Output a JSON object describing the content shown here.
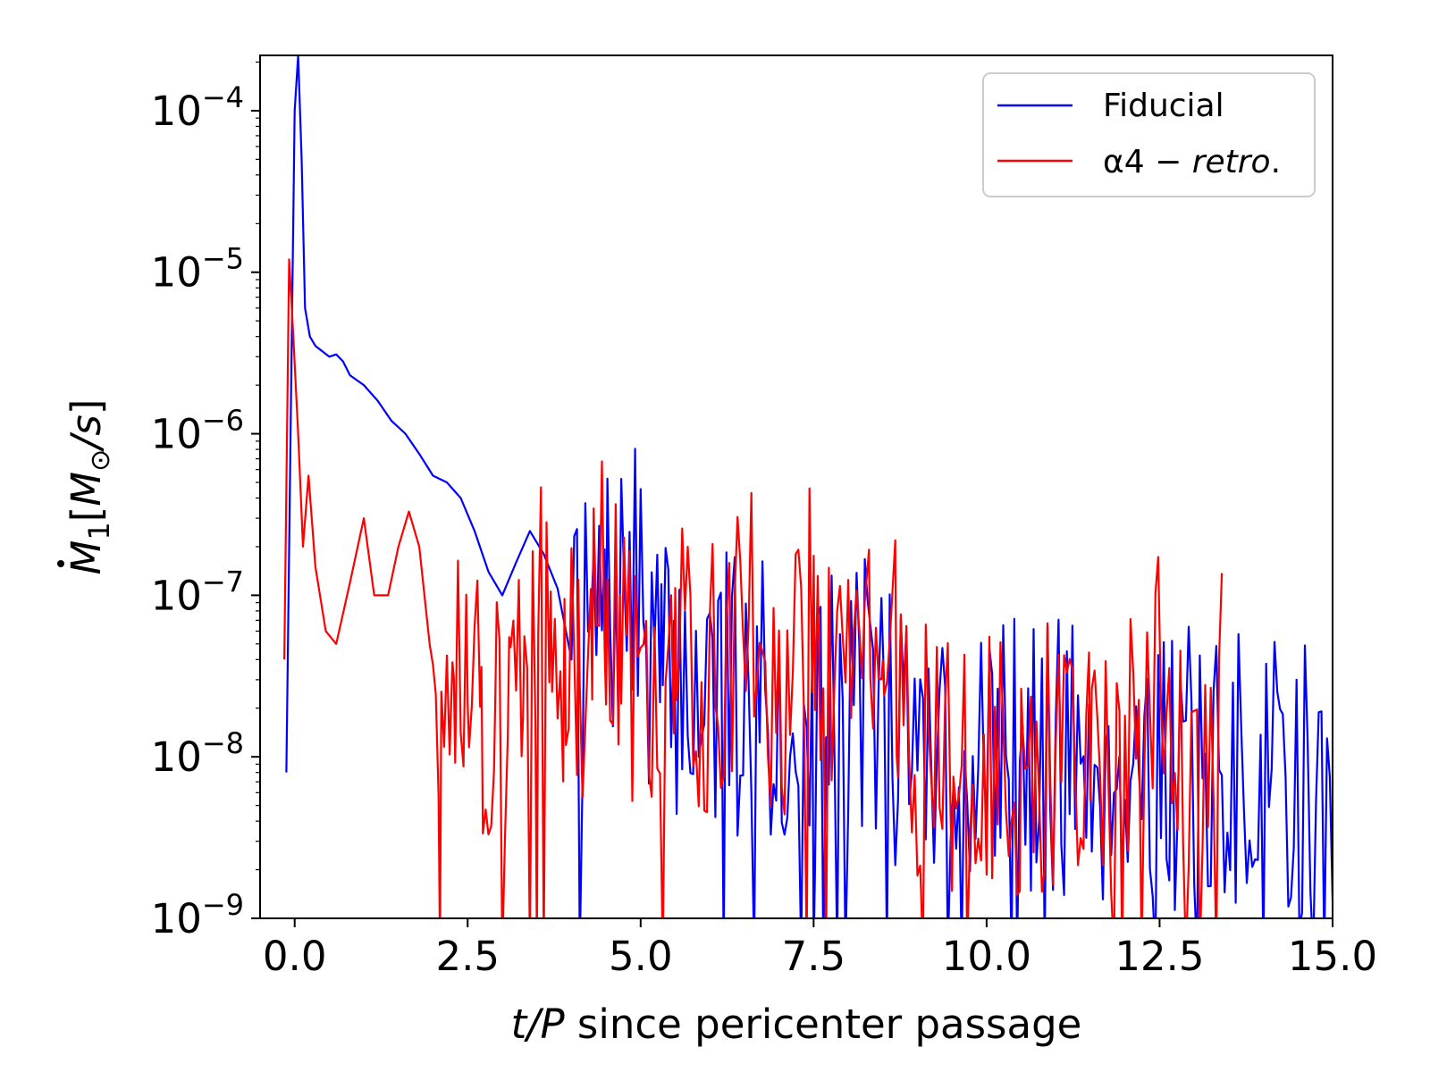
{
  "chart_data": {
    "type": "line",
    "title": "",
    "xlabel": {
      "italic_part": "t/P",
      "rest": " since pericenter passage"
    },
    "ylabel": {
      "symbol": "M",
      "subscript": "1",
      "unit_open": "[",
      "unit_symbol": "M",
      "unit_sub": "⊙",
      "unit_rest": "/s",
      "unit_close": "]"
    },
    "xlim": [
      -0.5,
      15.0
    ],
    "ylim": [
      1e-09,
      0.00022
    ],
    "yscale": "log",
    "x_ticks": [
      {
        "value": 0.0,
        "label": "0.0"
      },
      {
        "value": 2.5,
        "label": "2.5"
      },
      {
        "value": 5.0,
        "label": "5.0"
      },
      {
        "value": 7.5,
        "label": "7.5"
      },
      {
        "value": 10.0,
        "label": "10.0"
      },
      {
        "value": 12.5,
        "label": "12.5"
      },
      {
        "value": 15.0,
        "label": "15.0"
      }
    ],
    "y_ticks": [
      {
        "value": 0.0001,
        "base": "10",
        "exp": "−4"
      },
      {
        "value": 1e-05,
        "base": "10",
        "exp": "−5"
      },
      {
        "value": 1e-06,
        "base": "10",
        "exp": "−6"
      },
      {
        "value": 1e-07,
        "base": "10",
        "exp": "−7"
      },
      {
        "value": 1e-08,
        "base": "10",
        "exp": "−8"
      },
      {
        "value": 1e-09,
        "base": "10",
        "exp": "−9"
      }
    ],
    "legend": {
      "position": "upper-right",
      "entries": [
        {
          "label": "Fiducial",
          "color": "#0000ff"
        },
        {
          "label_prefix": "α4 − ",
          "label_italic": "retro",
          "label_suffix": ".",
          "color": "#ff0000"
        }
      ]
    },
    "series": [
      {
        "name": "Fiducial",
        "color": "#0000ff",
        "noise_from_x": 4.0,
        "noise_seed": 7,
        "noise_amp_dex": 0.9,
        "noise_step": 0.04,
        "x": [
          -0.12,
          -0.05,
          0.0,
          0.05,
          0.1,
          0.15,
          0.22,
          0.3,
          0.5,
          0.6,
          0.7,
          0.8,
          1.0,
          1.2,
          1.4,
          1.6,
          1.8,
          2.0,
          2.2,
          2.4,
          2.6,
          2.8,
          3.0,
          3.2,
          3.4,
          3.6,
          3.8,
          4.0,
          4.5,
          4.9,
          5.3,
          6.0,
          7.0,
          7.5,
          8.0,
          9.0,
          10.0,
          11.0,
          12.0,
          13.0,
          14.0,
          15.0
        ],
        "y": [
          8e-09,
          2e-06,
          0.0001,
          0.00022,
          5e-05,
          6e-06,
          4e-06,
          3.5e-06,
          3e-06,
          3.1e-06,
          2.8e-06,
          2.3e-06,
          2e-06,
          1.6e-06,
          1.2e-06,
          1e-06,
          7.5e-07,
          5.5e-07,
          5e-07,
          4e-07,
          2.5e-07,
          1.4e-07,
          1e-07,
          1.6e-07,
          2.5e-07,
          1.8e-07,
          1.1e-07,
          4e-08,
          7e-08,
          1.1e-07,
          3e-08,
          2.5e-08,
          2e-08,
          1.2e-08,
          3.5e-08,
          1.2e-08,
          1.1e-08,
          1e-08,
          9e-09,
          8e-09,
          7e-09,
          7e-09
        ]
      },
      {
        "name": "α4 − retro.",
        "color": "#ff0000",
        "noise_from_x": 2.0,
        "noise_seed": 13,
        "noise_amp_dex": 0.85,
        "noise_step": 0.04,
        "x": [
          -0.15,
          -0.08,
          -0.02,
          0.05,
          0.12,
          0.2,
          0.3,
          0.45,
          0.6,
          0.8,
          1.0,
          1.15,
          1.35,
          1.5,
          1.65,
          1.8,
          1.95,
          2.1,
          2.3,
          2.5,
          2.7,
          2.9,
          3.1,
          3.3,
          3.5,
          3.7,
          3.9,
          4.1,
          4.3,
          4.5,
          4.7,
          5.0,
          5.5,
          6.0,
          6.4,
          6.6,
          6.8,
          7.0,
          7.2,
          7.5,
          7.8,
          8.0,
          8.3,
          8.5,
          8.7,
          9.0,
          9.5,
          10.0,
          10.5,
          11.0,
          11.5,
          12.0,
          12.4,
          12.6,
          12.8,
          13.0,
          13.2,
          13.4
        ],
        "y": [
          4e-08,
          1.2e-05,
          4e-06,
          1e-06,
          2e-07,
          5.5e-07,
          1.5e-07,
          6e-08,
          5e-08,
          1.2e-07,
          3e-07,
          1e-07,
          1e-07,
          2e-07,
          3.3e-07,
          2e-07,
          5e-08,
          2e-08,
          3e-08,
          8e-08,
          2e-08,
          1.5e-08,
          1.5e-08,
          2.5e-08,
          6e-08,
          1.1e-07,
          4e-08,
          3e-08,
          7e-08,
          1.3e-07,
          6e-08,
          1.5e-08,
          4e-08,
          3e-08,
          6e-08,
          1.2e-07,
          5e-08,
          2e-08,
          5e-08,
          7e-08,
          2.5e-08,
          6e-08,
          5e-08,
          7.5e-08,
          4e-08,
          1.2e-08,
          1e-08,
          1e-08,
          8e-09,
          1e-08,
          1e-08,
          1e-08,
          2.5e-08,
          4e-08,
          1.5e-08,
          1e-08,
          2e-08,
          4.5e-08
        ]
      }
    ]
  }
}
